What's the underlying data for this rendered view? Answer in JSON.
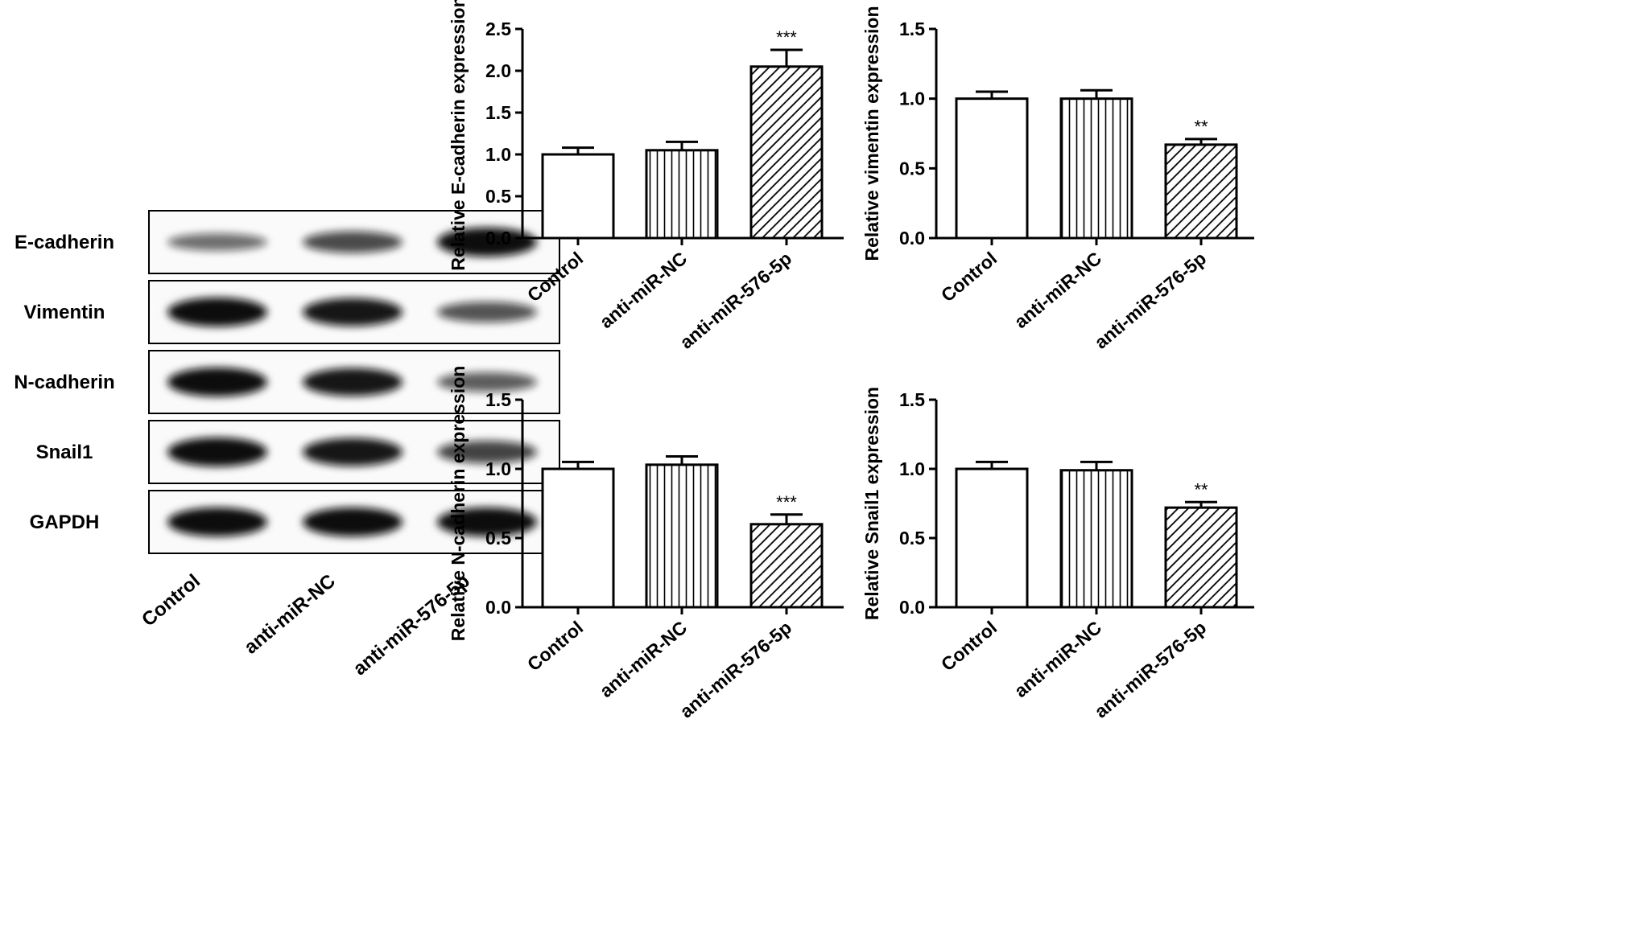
{
  "blot": {
    "proteins": [
      "E-cadherin",
      "Vimentin",
      "N-cadherin",
      "Snail1",
      "GAPDH"
    ],
    "lanes": [
      "Control",
      "anti-miR-NC",
      "anti-miR-576-5p"
    ],
    "band_intensity": [
      [
        0.45,
        0.65,
        1.0
      ],
      [
        1.0,
        0.95,
        0.6
      ],
      [
        1.0,
        0.95,
        0.55
      ],
      [
        1.0,
        0.95,
        0.7
      ],
      [
        1.0,
        1.0,
        1.0
      ]
    ]
  },
  "chart_data": [
    {
      "type": "bar",
      "categories": [
        "Control",
        "anti-miR-NC",
        "anti-miR-576-5p"
      ],
      "values": [
        1.0,
        1.05,
        2.05
      ],
      "errors": [
        0.08,
        0.1,
        0.2
      ],
      "significance": [
        "",
        "",
        "***"
      ],
      "patterns": [
        "none",
        "vertical",
        "diagonal"
      ],
      "ylabel": "Relative E-cadherin expression",
      "ylim": [
        0,
        2.5
      ],
      "yticks": [
        "0.0",
        "0.5",
        "1.0",
        "1.5",
        "2.0",
        "2.5"
      ]
    },
    {
      "type": "bar",
      "categories": [
        "Control",
        "anti-miR-NC",
        "anti-miR-576-5p"
      ],
      "values": [
        1.0,
        1.0,
        0.67
      ],
      "errors": [
        0.05,
        0.06,
        0.04
      ],
      "significance": [
        "",
        "",
        "**"
      ],
      "patterns": [
        "none",
        "vertical",
        "diagonal"
      ],
      "ylabel": "Relative vimentin expression",
      "ylim": [
        0,
        1.5
      ],
      "yticks": [
        "0.0",
        "0.5",
        "1.0",
        "1.5"
      ]
    },
    {
      "type": "bar",
      "categories": [
        "Control",
        "anti-miR-NC",
        "anti-miR-576-5p"
      ],
      "values": [
        1.0,
        1.03,
        0.6
      ],
      "errors": [
        0.05,
        0.06,
        0.07
      ],
      "significance": [
        "",
        "",
        "***"
      ],
      "patterns": [
        "none",
        "vertical",
        "diagonal"
      ],
      "ylabel": "Relative N-cadherin expression",
      "ylim": [
        0,
        1.5
      ],
      "yticks": [
        "0.0",
        "0.5",
        "1.0",
        "1.5"
      ]
    },
    {
      "type": "bar",
      "categories": [
        "Control",
        "anti-miR-NC",
        "anti-miR-576-5p"
      ],
      "values": [
        1.0,
        0.99,
        0.72
      ],
      "errors": [
        0.05,
        0.06,
        0.04
      ],
      "significance": [
        "",
        "",
        "**"
      ],
      "patterns": [
        "none",
        "vertical",
        "diagonal"
      ],
      "ylabel": "Relative Snail1 expression",
      "ylim": [
        0,
        1.5
      ],
      "yticks": [
        "0.0",
        "0.5",
        "1.0",
        "1.5"
      ]
    }
  ]
}
